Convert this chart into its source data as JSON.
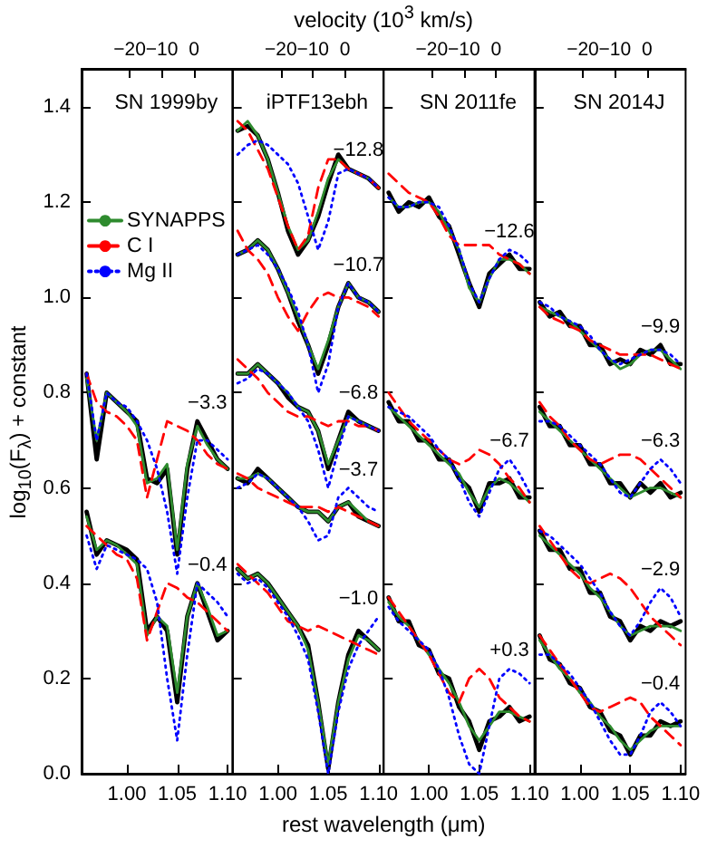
{
  "chart_data": [
    {
      "type": "line",
      "title": "SN 1999by",
      "xlabel": "rest wavelength (μm)",
      "x2label": "velocity (10$^{3}$ km/s)",
      "ylabel": "log$_{10}$(F$_{λ}$) + constant",
      "xlim": [
        0.955,
        1.105
      ],
      "x2lim": [
        -35,
        12
      ],
      "ylim": [
        0,
        1.48
      ],
      "xticks": [
        {
          "value": 1.0,
          "label": "1.00"
        },
        {
          "value": 1.05,
          "label": "1.05"
        },
        {
          "value": 1.1,
          "label": "1.10"
        }
      ],
      "x2ticks": [
        -20,
        -10,
        0
      ],
      "yticks": [
        {
          "value": 0,
          "label": "0.0"
        },
        {
          "value": 0.2,
          "label": "0.2"
        },
        {
          "value": 0.4,
          "label": "0.4"
        },
        {
          "value": 0.6,
          "label": "0.6"
        },
        {
          "value": 0.8,
          "label": "0.8"
        },
        {
          "value": 1.0,
          "label": "1.0"
        },
        {
          "value": 1.2,
          "label": "1.2"
        },
        {
          "value": 1.4,
          "label": "1.4"
        }
      ],
      "grid": false,
      "marker": "none",
      "line_style": "solid",
      "legend": "left",
      "x": [
        0.96,
        0.97,
        0.98,
        0.99,
        1.0,
        1.01,
        1.02,
        1.03,
        1.04,
        1.05,
        1.06,
        1.07,
        1.08,
        1.09,
        1.1
      ],
      "annotations": [
        "−3.3",
        "−0.4"
      ],
      "series": [
        {
          "color": "#000000",
          "values": [
            0.84,
            0.66,
            0.8,
            0.78,
            0.76,
            0.74,
            0.62,
            0.61,
            0.64,
            0.46,
            0.64,
            0.74,
            0.7,
            0.66,
            0.64
          ]
        },
        {
          "name": "SYNAPPS",
          "color": "#2e8b2e",
          "values": [
            0.83,
            0.7,
            0.8,
            0.78,
            0.76,
            0.73,
            0.61,
            0.62,
            0.65,
            0.47,
            0.65,
            0.73,
            0.69,
            0.66,
            0.64
          ]
        },
        {
          "name": "C I",
          "color": "#ff0000",
          "line_style": "dashed",
          "values": [
            0.84,
            0.78,
            0.76,
            0.75,
            0.73,
            0.7,
            0.58,
            0.66,
            0.74,
            0.73,
            0.72,
            0.7,
            0.67,
            0.65,
            0.64
          ]
        },
        {
          "name": "Mg II",
          "color": "#0000ff",
          "line_style": "dotted",
          "values": [
            0.84,
            0.7,
            0.8,
            0.78,
            0.77,
            0.74,
            0.7,
            0.64,
            0.55,
            0.42,
            0.58,
            0.7,
            0.7,
            0.68,
            0.66
          ]
        },
        {
          "color": "#000000",
          "values": [
            0.55,
            0.46,
            0.49,
            0.48,
            0.47,
            0.45,
            0.3,
            0.33,
            0.3,
            0.15,
            0.33,
            0.4,
            0.34,
            0.28,
            0.3
          ]
        },
        {
          "color": "#2e8b2e",
          "values": [
            0.54,
            0.47,
            0.49,
            0.48,
            0.46,
            0.44,
            0.29,
            0.33,
            0.31,
            0.17,
            0.33,
            0.4,
            0.35,
            0.29,
            0.3
          ]
        },
        {
          "color": "#ff0000",
          "line_style": "dashed",
          "values": [
            0.52,
            0.5,
            0.48,
            0.46,
            0.45,
            0.41,
            0.28,
            0.34,
            0.4,
            0.39,
            0.37,
            0.36,
            0.34,
            0.32,
            0.3
          ]
        },
        {
          "color": "#0000ff",
          "line_style": "dotted",
          "values": [
            0.5,
            0.43,
            0.48,
            0.47,
            0.46,
            0.45,
            0.43,
            0.36,
            0.2,
            0.07,
            0.25,
            0.4,
            0.38,
            0.36,
            0.33
          ]
        }
      ]
    },
    {
      "type": "line",
      "title": "iPTF13ebh",
      "xlim": [
        0.955,
        1.105
      ],
      "x2lim": [
        -35,
        12
      ],
      "ylim": [
        0,
        1.48
      ],
      "xticks": [
        {
          "value": 1.0,
          "label": "1.00"
        },
        {
          "value": 1.05,
          "label": "1.05"
        },
        {
          "value": 1.1,
          "label": "1.10"
        }
      ],
      "x2ticks": [
        -20,
        -10,
        0
      ],
      "yticks": [
        0,
        0.2,
        0.4,
        0.6,
        0.8,
        1.0,
        1.2,
        1.4
      ],
      "tick_labels": "x",
      "grid": false,
      "marker": "none",
      "line_style": "solid",
      "x": [
        0.96,
        0.97,
        0.98,
        0.99,
        1.0,
        1.01,
        1.02,
        1.03,
        1.04,
        1.05,
        1.06,
        1.07,
        1.08,
        1.09,
        1.1
      ],
      "annotations": [
        "−12.8",
        "−10.7",
        "−6.8",
        "−3.7",
        "−1.0"
      ],
      "series": [
        {
          "color": "#000000",
          "values": [
            1.35,
            1.36,
            1.34,
            1.29,
            1.22,
            1.14,
            1.09,
            1.12,
            1.17,
            1.24,
            1.3,
            1.27,
            1.26,
            1.25,
            1.23
          ]
        },
        {
          "color": "#2e8b2e",
          "values": [
            1.35,
            1.37,
            1.34,
            1.29,
            1.22,
            1.15,
            1.1,
            1.12,
            1.18,
            1.25,
            1.29,
            1.27,
            1.26,
            1.25,
            1.23
          ]
        },
        {
          "color": "#ff0000",
          "line_style": "dashed",
          "values": [
            1.37,
            1.35,
            1.31,
            1.27,
            1.21,
            1.15,
            1.1,
            1.13,
            1.23,
            1.29,
            1.29,
            1.27,
            1.26,
            1.25,
            1.23
          ]
        },
        {
          "color": "#0000ff",
          "line_style": "dotted",
          "values": [
            1.3,
            1.32,
            1.33,
            1.32,
            1.3,
            1.28,
            1.24,
            1.17,
            1.1,
            1.16,
            1.26,
            1.27,
            1.26,
            1.25,
            1.23
          ]
        },
        {
          "color": "#000000",
          "values": [
            1.09,
            1.1,
            1.12,
            1.1,
            1.06,
            1.01,
            0.95,
            0.9,
            0.84,
            0.9,
            0.98,
            1.03,
            1.0,
            0.99,
            0.97
          ]
        },
        {
          "color": "#2e8b2e",
          "values": [
            1.09,
            1.1,
            1.12,
            1.1,
            1.06,
            1.01,
            0.96,
            0.9,
            0.85,
            0.91,
            0.98,
            1.03,
            1.0,
            0.99,
            0.97
          ]
        },
        {
          "color": "#ff0000",
          "line_style": "dashed",
          "values": [
            1.14,
            1.1,
            1.08,
            1.05,
            1.0,
            0.96,
            0.93,
            0.97,
            1.0,
            1.01,
            1.0,
            1.0,
            0.99,
            0.98,
            0.96
          ]
        },
        {
          "color": "#0000ff",
          "line_style": "dotted",
          "values": [
            1.09,
            1.1,
            1.11,
            1.09,
            1.06,
            1.02,
            0.97,
            0.9,
            0.8,
            0.86,
            0.98,
            1.03,
            1.0,
            0.99,
            0.97
          ]
        },
        {
          "color": "#000000",
          "values": [
            0.84,
            0.84,
            0.86,
            0.84,
            0.82,
            0.79,
            0.77,
            0.76,
            0.72,
            0.64,
            0.7,
            0.76,
            0.74,
            0.73,
            0.72
          ]
        },
        {
          "color": "#2e8b2e",
          "values": [
            0.84,
            0.84,
            0.86,
            0.84,
            0.82,
            0.8,
            0.77,
            0.76,
            0.72,
            0.65,
            0.7,
            0.75,
            0.74,
            0.73,
            0.72
          ]
        },
        {
          "color": "#ff0000",
          "line_style": "dashed",
          "values": [
            0.87,
            0.85,
            0.83,
            0.8,
            0.78,
            0.76,
            0.75,
            0.75,
            0.74,
            0.73,
            0.74,
            0.74,
            0.73,
            0.73,
            0.72
          ]
        },
        {
          "color": "#0000ff",
          "line_style": "dotted",
          "values": [
            0.82,
            0.83,
            0.85,
            0.84,
            0.82,
            0.8,
            0.77,
            0.74,
            0.68,
            0.6,
            0.68,
            0.75,
            0.74,
            0.73,
            0.72
          ]
        },
        {
          "color": "#000000",
          "values": [
            0.62,
            0.61,
            0.64,
            0.62,
            0.6,
            0.58,
            0.56,
            0.55,
            0.55,
            0.53,
            0.56,
            0.57,
            0.54,
            0.53,
            0.52
          ]
        },
        {
          "color": "#2e8b2e",
          "values": [
            0.62,
            0.62,
            0.63,
            0.62,
            0.6,
            0.58,
            0.56,
            0.55,
            0.55,
            0.53,
            0.56,
            0.57,
            0.55,
            0.53,
            0.52
          ]
        },
        {
          "color": "#ff0000",
          "line_style": "dashed",
          "values": [
            0.63,
            0.62,
            0.6,
            0.59,
            0.58,
            0.57,
            0.56,
            0.56,
            0.56,
            0.55,
            0.56,
            0.55,
            0.54,
            0.53,
            0.52
          ]
        },
        {
          "color": "#0000ff",
          "line_style": "dotted",
          "values": [
            0.6,
            0.61,
            0.63,
            0.62,
            0.6,
            0.58,
            0.56,
            0.53,
            0.49,
            0.5,
            0.58,
            0.6,
            0.58,
            0.56,
            0.55
          ]
        },
        {
          "color": "#000000",
          "values": [
            0.43,
            0.41,
            0.42,
            0.4,
            0.37,
            0.34,
            0.31,
            0.27,
            0.15,
            0.01,
            0.15,
            0.25,
            0.3,
            0.28,
            0.26
          ]
        },
        {
          "color": "#2e8b2e",
          "values": [
            0.43,
            0.41,
            0.42,
            0.4,
            0.37,
            0.34,
            0.31,
            0.26,
            0.15,
            0.02,
            0.15,
            0.24,
            0.29,
            0.28,
            0.26
          ]
        },
        {
          "color": "#ff0000",
          "line_style": "dashed",
          "values": [
            0.44,
            0.42,
            0.4,
            0.38,
            0.35,
            0.32,
            0.31,
            0.3,
            0.31,
            0.3,
            0.29,
            0.28,
            0.27,
            0.26,
            0.25
          ]
        },
        {
          "color": "#0000ff",
          "line_style": "dotted",
          "values": [
            0.42,
            0.4,
            0.41,
            0.39,
            0.36,
            0.33,
            0.29,
            0.24,
            0.13,
            0.0,
            0.13,
            0.22,
            0.27,
            0.3,
            0.33
          ]
        }
      ]
    },
    {
      "type": "line",
      "title": "SN 2011fe",
      "xlim": [
        0.955,
        1.105
      ],
      "x2lim": [
        -35,
        12
      ],
      "ylim": [
        0,
        1.48
      ],
      "xticks": [
        {
          "value": 1.0,
          "label": "1.00"
        },
        {
          "value": 1.05,
          "label": "1.05"
        },
        {
          "value": 1.1,
          "label": "1.10"
        }
      ],
      "x2ticks": [
        -20,
        -10,
        0
      ],
      "yticks": [
        0,
        0.2,
        0.4,
        0.6,
        0.8,
        1.0,
        1.2,
        1.4
      ],
      "tick_labels": "x",
      "grid": false,
      "marker": "none",
      "line_style": "solid",
      "x": [
        0.96,
        0.97,
        0.98,
        0.99,
        1.0,
        1.01,
        1.02,
        1.03,
        1.04,
        1.05,
        1.06,
        1.07,
        1.08,
        1.09,
        1.1
      ],
      "annotations": [
        "−12.6",
        "−6.7",
        "+0.3"
      ],
      "series": [
        {
          "color": "#000000",
          "values": [
            1.22,
            1.18,
            1.2,
            1.19,
            1.21,
            1.17,
            1.15,
            1.09,
            1.03,
            0.98,
            1.05,
            1.07,
            1.09,
            1.06,
            1.06
          ]
        },
        {
          "color": "#2e8b2e",
          "values": [
            1.21,
            1.19,
            1.19,
            1.2,
            1.2,
            1.18,
            1.14,
            1.1,
            1.02,
            0.99,
            1.04,
            1.08,
            1.08,
            1.07,
            1.05
          ]
        },
        {
          "color": "#ff0000",
          "line_style": "dashed",
          "values": [
            1.26,
            1.24,
            1.22,
            1.21,
            1.2,
            1.17,
            1.13,
            1.11,
            1.11,
            1.11,
            1.11,
            1.09,
            1.08,
            1.07,
            1.05
          ]
        },
        {
          "color": "#0000ff",
          "line_style": "dotted",
          "values": [
            1.21,
            1.19,
            1.19,
            1.2,
            1.2,
            1.19,
            1.15,
            1.1,
            1.03,
            0.99,
            1.04,
            1.08,
            1.1,
            1.09,
            1.07
          ]
        },
        {
          "color": "#000000",
          "values": [
            0.78,
            0.74,
            0.74,
            0.7,
            0.7,
            0.66,
            0.66,
            0.62,
            0.6,
            0.55,
            0.61,
            0.61,
            0.62,
            0.58,
            0.58
          ]
        },
        {
          "color": "#2e8b2e",
          "values": [
            0.77,
            0.75,
            0.73,
            0.71,
            0.69,
            0.67,
            0.65,
            0.63,
            0.59,
            0.56,
            0.6,
            0.62,
            0.61,
            0.59,
            0.57
          ]
        },
        {
          "color": "#ff0000",
          "line_style": "dashed",
          "values": [
            0.8,
            0.77,
            0.74,
            0.72,
            0.7,
            0.68,
            0.66,
            0.65,
            0.66,
            0.68,
            0.67,
            0.65,
            0.62,
            0.6,
            0.57
          ]
        },
        {
          "color": "#0000ff",
          "line_style": "dotted",
          "values": [
            0.77,
            0.76,
            0.75,
            0.73,
            0.71,
            0.68,
            0.66,
            0.62,
            0.57,
            0.54,
            0.59,
            0.64,
            0.66,
            0.63,
            0.59
          ]
        },
        {
          "color": "#000000",
          "values": [
            0.37,
            0.32,
            0.32,
            0.27,
            0.26,
            0.21,
            0.2,
            0.14,
            0.11,
            0.05,
            0.11,
            0.12,
            0.14,
            0.11,
            0.12
          ]
        },
        {
          "color": "#2e8b2e",
          "values": [
            0.36,
            0.33,
            0.31,
            0.28,
            0.25,
            0.22,
            0.19,
            0.15,
            0.1,
            0.07,
            0.1,
            0.13,
            0.13,
            0.12,
            0.11
          ]
        },
        {
          "color": "#ff0000",
          "line_style": "dashed",
          "values": [
            0.37,
            0.34,
            0.31,
            0.28,
            0.25,
            0.21,
            0.17,
            0.15,
            0.2,
            0.22,
            0.2,
            0.16,
            0.14,
            0.12,
            0.11
          ]
        },
        {
          "color": "#0000ff",
          "line_style": "dotted",
          "values": [
            0.35,
            0.32,
            0.3,
            0.28,
            0.26,
            0.22,
            0.16,
            0.08,
            0.02,
            0.0,
            0.1,
            0.2,
            0.22,
            0.21,
            0.19
          ]
        }
      ]
    },
    {
      "type": "line",
      "title": "SN 2014J",
      "xlim": [
        0.955,
        1.105
      ],
      "x2lim": [
        -35,
        12
      ],
      "ylim": [
        0,
        1.48
      ],
      "xticks": [
        {
          "value": 1.0,
          "label": "1.00"
        },
        {
          "value": 1.05,
          "label": "1.05"
        },
        {
          "value": 1.1,
          "label": "1.10"
        }
      ],
      "x2ticks": [
        -20,
        -10,
        0
      ],
      "yticks": [
        0,
        0.2,
        0.4,
        0.6,
        0.8,
        1.0,
        1.2,
        1.4
      ],
      "tick_labels": "x",
      "grid": false,
      "marker": "none",
      "line_style": "solid",
      "x": [
        0.96,
        0.97,
        0.98,
        0.99,
        1.0,
        1.01,
        1.02,
        1.03,
        1.04,
        1.05,
        1.06,
        1.07,
        1.08,
        1.09,
        1.1
      ],
      "annotations": [
        "−9.9",
        "−6.3",
        "−2.9",
        "−0.4"
      ],
      "series": [
        {
          "color": "#000000",
          "values": [
            0.99,
            0.96,
            0.97,
            0.94,
            0.94,
            0.9,
            0.9,
            0.86,
            0.87,
            0.86,
            0.89,
            0.88,
            0.9,
            0.86,
            0.86
          ]
        },
        {
          "color": "#2e8b2e",
          "values": [
            0.98,
            0.97,
            0.96,
            0.95,
            0.93,
            0.91,
            0.89,
            0.87,
            0.85,
            0.86,
            0.88,
            0.89,
            0.89,
            0.87,
            0.85
          ]
        },
        {
          "color": "#ff0000",
          "line_style": "dashed",
          "values": [
            0.98,
            0.96,
            0.95,
            0.94,
            0.93,
            0.91,
            0.9,
            0.89,
            0.88,
            0.88,
            0.88,
            0.88,
            0.87,
            0.86,
            0.85
          ]
        },
        {
          "color": "#0000ff",
          "line_style": "dotted",
          "values": [
            0.99,
            0.98,
            0.96,
            0.95,
            0.94,
            0.92,
            0.89,
            0.87,
            0.86,
            0.87,
            0.88,
            0.89,
            0.89,
            0.88,
            0.86
          ]
        },
        {
          "color": "#000000",
          "values": [
            0.77,
            0.73,
            0.73,
            0.69,
            0.69,
            0.65,
            0.65,
            0.61,
            0.61,
            0.58,
            0.61,
            0.59,
            0.61,
            0.58,
            0.59
          ]
        },
        {
          "color": "#2e8b2e",
          "values": [
            0.76,
            0.74,
            0.72,
            0.7,
            0.68,
            0.66,
            0.64,
            0.62,
            0.6,
            0.58,
            0.59,
            0.6,
            0.6,
            0.59,
            0.58
          ]
        },
        {
          "color": "#ff0000",
          "line_style": "dashed",
          "values": [
            0.78,
            0.75,
            0.73,
            0.7,
            0.68,
            0.66,
            0.65,
            0.66,
            0.67,
            0.67,
            0.66,
            0.64,
            0.62,
            0.6,
            0.58
          ]
        },
        {
          "color": "#0000ff",
          "line_style": "dotted",
          "values": [
            0.74,
            0.74,
            0.73,
            0.71,
            0.69,
            0.67,
            0.65,
            0.62,
            0.59,
            0.58,
            0.61,
            0.64,
            0.66,
            0.64,
            0.61
          ]
        },
        {
          "color": "#000000",
          "values": [
            0.51,
            0.47,
            0.47,
            0.43,
            0.43,
            0.38,
            0.38,
            0.33,
            0.32,
            0.28,
            0.31,
            0.3,
            0.32,
            0.31,
            0.32
          ]
        },
        {
          "color": "#2e8b2e",
          "values": [
            0.5,
            0.48,
            0.46,
            0.44,
            0.42,
            0.39,
            0.37,
            0.34,
            0.31,
            0.29,
            0.3,
            0.31,
            0.31,
            0.31,
            0.3
          ]
        },
        {
          "color": "#ff0000",
          "line_style": "dashed",
          "values": [
            0.52,
            0.49,
            0.46,
            0.43,
            0.41,
            0.4,
            0.41,
            0.42,
            0.41,
            0.39,
            0.36,
            0.33,
            0.31,
            0.29,
            0.27
          ]
        },
        {
          "color": "#0000ff",
          "line_style": "dotted",
          "values": [
            0.51,
            0.5,
            0.48,
            0.46,
            0.44,
            0.41,
            0.38,
            0.34,
            0.31,
            0.29,
            0.32,
            0.36,
            0.39,
            0.37,
            0.33
          ]
        },
        {
          "color": "#000000",
          "values": [
            0.29,
            0.24,
            0.23,
            0.19,
            0.18,
            0.14,
            0.13,
            0.09,
            0.08,
            0.04,
            0.08,
            0.08,
            0.11,
            0.1,
            0.11
          ]
        },
        {
          "color": "#2e8b2e",
          "values": [
            0.28,
            0.25,
            0.22,
            0.2,
            0.17,
            0.15,
            0.12,
            0.1,
            0.07,
            0.05,
            0.07,
            0.09,
            0.1,
            0.1,
            0.1
          ]
        },
        {
          "color": "#ff0000",
          "line_style": "dashed",
          "values": [
            0.29,
            0.26,
            0.23,
            0.2,
            0.17,
            0.14,
            0.13,
            0.14,
            0.15,
            0.16,
            0.15,
            0.12,
            0.1,
            0.08,
            0.06
          ]
        },
        {
          "color": "#0000ff",
          "line_style": "dotted",
          "values": [
            0.25,
            0.25,
            0.23,
            0.21,
            0.18,
            0.15,
            0.11,
            0.07,
            0.04,
            0.04,
            0.08,
            0.13,
            0.15,
            0.13,
            0.1
          ]
        }
      ]
    }
  ]
}
